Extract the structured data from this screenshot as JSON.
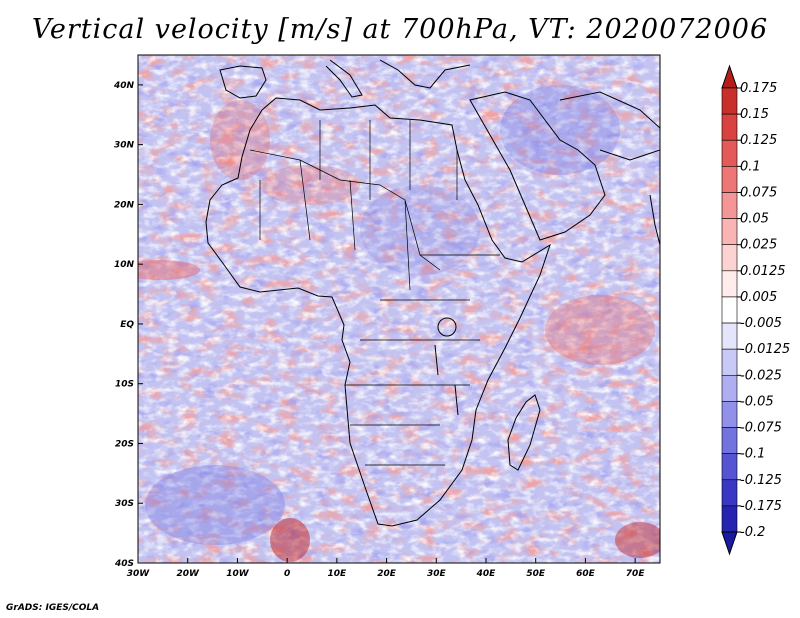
{
  "title": "Vertical velocity [m/s] at 700hPa, VT: 2020072006",
  "footer": "GrADS: IGES/COLA",
  "map": {
    "lon_range": [
      -30,
      75
    ],
    "lat_range": [
      -40,
      45
    ],
    "lat_ticks": [
      {
        "value": 40,
        "label": "40N"
      },
      {
        "value": 30,
        "label": "30N"
      },
      {
        "value": 20,
        "label": "20N"
      },
      {
        "value": 10,
        "label": "10N"
      },
      {
        "value": 0,
        "label": "EQ"
      },
      {
        "value": -10,
        "label": "10S"
      },
      {
        "value": -20,
        "label": "20S"
      },
      {
        "value": -30,
        "label": "30S"
      },
      {
        "value": -40,
        "label": "40S"
      }
    ],
    "lon_ticks": [
      {
        "value": -30,
        "label": "30W"
      },
      {
        "value": -20,
        "label": "20W"
      },
      {
        "value": -10,
        "label": "10W"
      },
      {
        "value": 0,
        "label": "0"
      },
      {
        "value": 10,
        "label": "10E"
      },
      {
        "value": 20,
        "label": "20E"
      },
      {
        "value": 30,
        "label": "30E"
      },
      {
        "value": 40,
        "label": "40E"
      },
      {
        "value": 50,
        "label": "50E"
      },
      {
        "value": 60,
        "label": "60E"
      },
      {
        "value": 70,
        "label": "70E"
      }
    ]
  },
  "colorbar": {
    "levels": [
      {
        "label": "0.175",
        "color": "#b71c1c"
      },
      {
        "label": "0.15",
        "color": "#c9302c"
      },
      {
        "label": "0.125",
        "color": "#d84340"
      },
      {
        "label": "0.1",
        "color": "#e45a58"
      },
      {
        "label": "0.075",
        "color": "#ec7776"
      },
      {
        "label": "0.05",
        "color": "#f39695"
      },
      {
        "label": "0.025",
        "color": "#f8b5b4"
      },
      {
        "label": "0.0125",
        "color": "#fcd3d2"
      },
      {
        "label": "0.005",
        "color": "#ffeceb"
      },
      {
        "label": "-0.005",
        "color": "#ffffff"
      },
      {
        "label": "-0.0125",
        "color": "#e4e4fb"
      },
      {
        "label": "-0.025",
        "color": "#c9c9f5"
      },
      {
        "label": "-0.05",
        "color": "#aeaef0"
      },
      {
        "label": "-0.075",
        "color": "#9191ea"
      },
      {
        "label": "-0.1",
        "color": "#7373e0"
      },
      {
        "label": "-0.125",
        "color": "#5555d4"
      },
      {
        "label": "-0.175",
        "color": "#3838c4"
      },
      {
        "label": "-0.2",
        "color": "#2424b0"
      }
    ],
    "top_color": "#b71c1c",
    "bottom_color": "#1a1aa0"
  },
  "colors": {
    "positive": "#e05555",
    "negative": "#6a6ae6",
    "neutral": "#ffffff",
    "border": "#000000"
  }
}
